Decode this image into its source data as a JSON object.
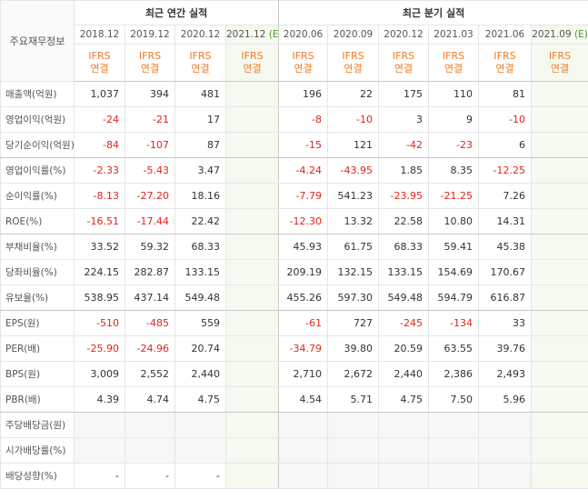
{
  "header": {
    "corner": "주요재무정보",
    "groups": [
      "최근 연간 실적",
      "최근 분기 실적"
    ],
    "columns": [
      {
        "date": "2018.12",
        "standard": "IFRS",
        "basis": "연결"
      },
      {
        "date": "2019.12",
        "standard": "IFRS",
        "basis": "연결"
      },
      {
        "date": "2020.12",
        "standard": "IFRS",
        "basis": "연결"
      },
      {
        "date": "2021.12",
        "estimate": "(E)",
        "standard": "IFRS",
        "basis": "연결"
      },
      {
        "date": "2020.06",
        "standard": "IFRS",
        "basis": "연결"
      },
      {
        "date": "2020.09",
        "standard": "IFRS",
        "basis": "연결"
      },
      {
        "date": "2020.12",
        "standard": "IFRS",
        "basis": "연결"
      },
      {
        "date": "2021.03",
        "standard": "IFRS",
        "basis": "연결"
      },
      {
        "date": "2021.06",
        "standard": "IFRS",
        "basis": "연결"
      },
      {
        "date": "2021.09",
        "estimate": "(E)",
        "standard": "IFRS",
        "basis": "연결"
      }
    ]
  },
  "rows": [
    {
      "label": "매출액(억원)",
      "values": [
        "1,037",
        "394",
        "481",
        null,
        "196",
        "22",
        "175",
        "110",
        "81",
        null
      ]
    },
    {
      "label": "영업이익(억원)",
      "values": [
        "-24",
        "-21",
        "17",
        null,
        "-8",
        "-10",
        "3",
        "9",
        "-10",
        null
      ]
    },
    {
      "label": "당기순이익(억원)",
      "values": [
        "-84",
        "-107",
        "87",
        null,
        "-15",
        "121",
        "-42",
        "-23",
        "6",
        null
      ]
    },
    {
      "label": "영업이익률(%)",
      "values": [
        "-2.33",
        "-5.43",
        "3.47",
        null,
        "-4.24",
        "-43.95",
        "1.85",
        "8.35",
        "-12.25",
        null
      ]
    },
    {
      "label": "순이익률(%)",
      "values": [
        "-8.13",
        "-27.20",
        "18.16",
        null,
        "-7.79",
        "541.23",
        "-23.95",
        "-21.25",
        "7.26",
        null
      ]
    },
    {
      "label": "ROE(%)",
      "values": [
        "-16.51",
        "-17.44",
        "22.42",
        null,
        "-12.30",
        "13.32",
        "22.58",
        "10.80",
        "14.31",
        null
      ]
    },
    {
      "label": "부채비율(%)",
      "values": [
        "33.52",
        "59.32",
        "68.33",
        null,
        "45.93",
        "61.75",
        "68.33",
        "59.41",
        "45.38",
        null
      ]
    },
    {
      "label": "당좌비율(%)",
      "values": [
        "224.15",
        "282.87",
        "133.15",
        null,
        "209.19",
        "132.15",
        "133.15",
        "154.69",
        "170.67",
        null
      ]
    },
    {
      "label": "유보율(%)",
      "values": [
        "538.95",
        "437.14",
        "549.48",
        null,
        "455.26",
        "597.30",
        "549.48",
        "594.79",
        "616.87",
        null
      ]
    },
    {
      "label": "EPS(원)",
      "values": [
        "-510",
        "-485",
        "559",
        null,
        "-61",
        "727",
        "-245",
        "-134",
        "33",
        null
      ]
    },
    {
      "label": "PER(배)",
      "values": [
        "-25.90",
        "-24.96",
        "20.74",
        null,
        "-34.79",
        "39.80",
        "20.59",
        "63.55",
        "39.76",
        null
      ]
    },
    {
      "label": "BPS(원)",
      "values": [
        "3,009",
        "2,552",
        "2,440",
        null,
        "2,710",
        "2,672",
        "2,440",
        "2,386",
        "2,493",
        null
      ]
    },
    {
      "label": "PBR(배)",
      "values": [
        "4.39",
        "4.74",
        "4.75",
        null,
        "4.54",
        "5.71",
        "4.75",
        "7.50",
        "5.96",
        null
      ]
    },
    {
      "label": "주당배당금(원)",
      "values": [
        null,
        null,
        null,
        null,
        null,
        null,
        null,
        null,
        null,
        null
      ]
    },
    {
      "label": "시가배당률(%)",
      "values": [
        null,
        null,
        null,
        null,
        null,
        null,
        null,
        null,
        null,
        null
      ]
    },
    {
      "label": "배당성향(%)",
      "values": [
        "-",
        "-",
        "-",
        null,
        null,
        null,
        null,
        null,
        null,
        null
      ]
    }
  ]
}
